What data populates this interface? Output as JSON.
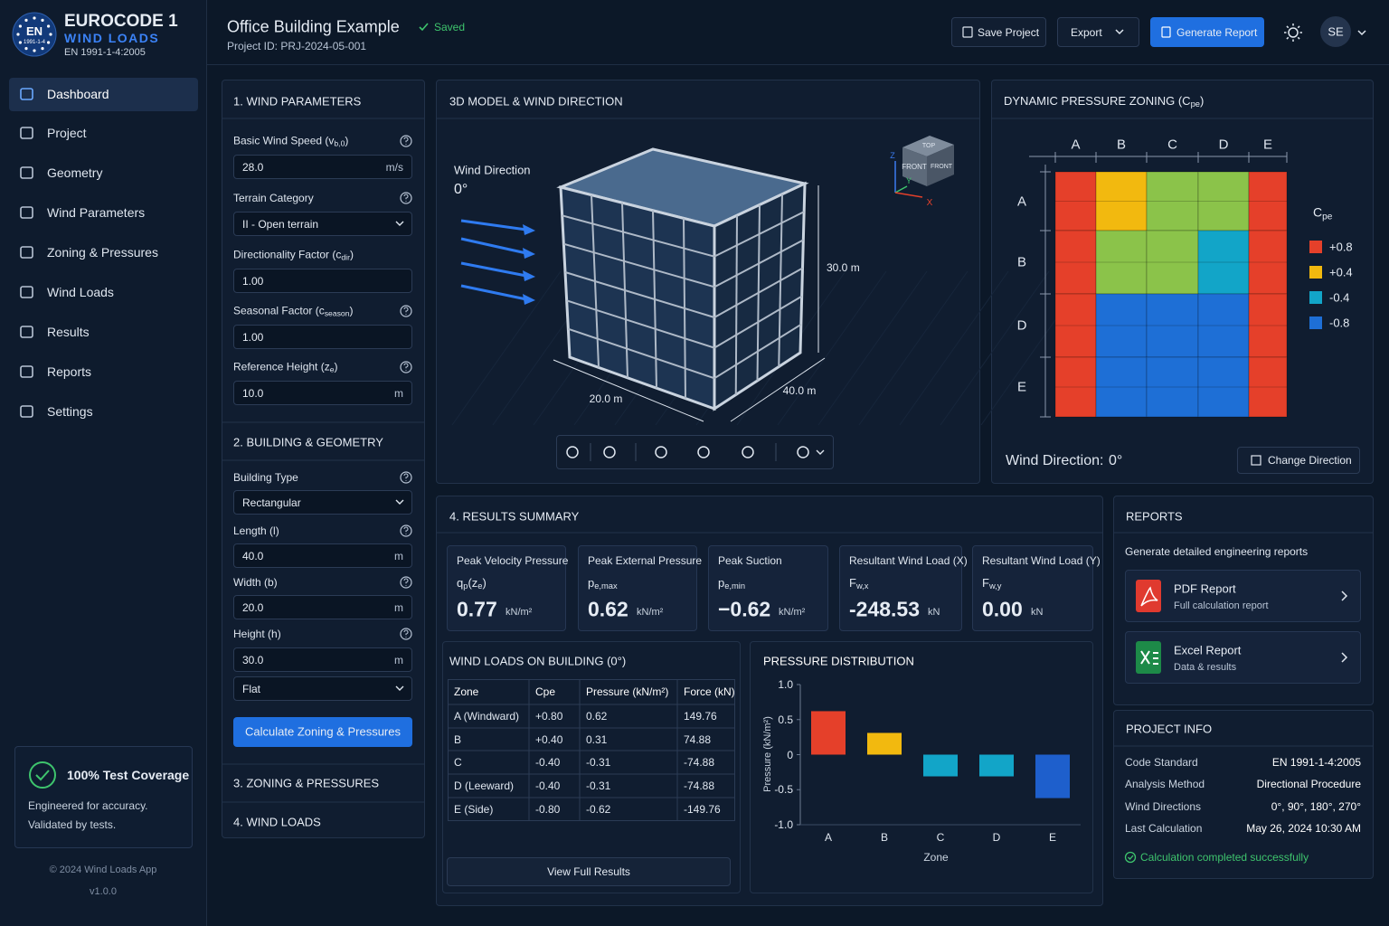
{
  "app": {
    "logo": "EN",
    "logo_sub": "1991-1-4",
    "title": "EUROCODE 1",
    "subtitle": "WIND LOADS",
    "standard": "EN 1991-1-4:2005"
  },
  "header": {
    "project": "Office Building Example",
    "status": "Saved",
    "project_id": "Project ID: PRJ-2024-05-001",
    "save": "Save Project",
    "export": "Export",
    "generate": "Generate Report",
    "avatar": "SE"
  },
  "nav": {
    "items": [
      "Dashboard",
      "Project",
      "Geometry",
      "Wind Parameters",
      "Zoning & Pressures",
      "Wind Loads",
      "Results",
      "Reports",
      "Settings"
    ],
    "active": 0
  },
  "coverage": {
    "title": "100% Test Coverage",
    "lines": [
      "Engineered for accuracy.",
      "Validated by tests."
    ]
  },
  "footer": [
    "© 2024 Wind Loads App",
    "v1.0.0"
  ],
  "wind_params": {
    "title": "1. WIND PARAMETERS",
    "fields": [
      {
        "label": [
          "Basic Wind Speed (v",
          {
            "sub": "b,0"
          },
          ")"
        ],
        "value": "28.0",
        "unit": "m/s",
        "help": true
      },
      {
        "label": [
          "Terrain Category"
        ],
        "value": "II - Open terrain",
        "help": true,
        "select": true
      },
      {
        "label": [
          "Directionality Factor (c",
          {
            "sub": "dir"
          },
          ")"
        ],
        "value": "1.00"
      },
      {
        "label": [
          "Seasonal Factor (c",
          {
            "sub": "season"
          },
          ")"
        ],
        "value": "1.00",
        "help": true
      },
      {
        "label": [
          "Reference Height (z",
          {
            "sub": "e"
          },
          ")"
        ],
        "value": "10.0",
        "unit": "m",
        "help": true
      }
    ]
  },
  "geometry": {
    "title": "2. BUILDING & GEOMETRY",
    "fields": [
      {
        "label": [
          "Building Type"
        ],
        "value": "Rectangular",
        "help": true,
        "select": true
      },
      {
        "label": [
          "Length (l)"
        ],
        "value": "40.0",
        "unit": "m",
        "help": true
      },
      {
        "label": [
          "Width (b)"
        ],
        "value": "20.0",
        "unit": "m",
        "help": true
      },
      {
        "label": [
          "Height (h)"
        ],
        "value": "30.0",
        "unit": "m",
        "help": true
      },
      {
        "value": "Flat",
        "select": true
      }
    ],
    "button": "Calculate Zoning & Pressures"
  },
  "collapsed": [
    "3. ZONING & PRESSURES",
    "4. WIND LOADS"
  ],
  "model": {
    "title": "3D MODEL & WIND DIRECTION",
    "wind_label": "Wind Direction",
    "wind_value": "0°",
    "height": "30.0 m",
    "width": "20.0 m",
    "length": "40.0 m",
    "cube": [
      "TOP",
      "FRONT",
      "FRONT"
    ],
    "axes": [
      "Z",
      "Y",
      "X"
    ]
  },
  "zoning": {
    "title": [
      "DYNAMIC PRESSURE ZONING (C",
      {
        "sub": "pe"
      },
      ")"
    ],
    "columns": [
      "A",
      "B",
      "C",
      "D",
      "E"
    ],
    "rows": [
      "A",
      "B",
      "D",
      "E"
    ],
    "cells": [
      [
        "#e5402a",
        "#f2b90f",
        "#8bc34a",
        "#8bc34a",
        "#e5402a"
      ],
      [
        "#e5402a",
        "#8bc34a",
        "#8bc34a",
        "#12a5c8",
        "#e5402a"
      ],
      [
        "#e5402a",
        "#1e6fd6",
        "#1e6fd6",
        "#1e6fd6",
        "#e5402a"
      ],
      [
        "#e5402a",
        "#1e6fd6",
        "#1e6fd6",
        "#1e6fd6",
        "#e5402a"
      ]
    ],
    "legend_title": [
      "C",
      {
        "sub": "pe"
      }
    ],
    "legend": [
      {
        "label": "+0.8",
        "color": "#e5402a"
      },
      {
        "label": "+0.4",
        "color": "#f2b90f"
      },
      {
        "label": "-0.4",
        "color": "#12a5c8"
      },
      {
        "label": "-0.8",
        "color": "#1e6fd6"
      }
    ],
    "direction_label": "Wind Direction:",
    "direction_value": "0°",
    "button": "Change Direction"
  },
  "results": {
    "title": "4. RESULTS SUMMARY",
    "cards": [
      {
        "title": "Peak Velocity Pressure",
        "symbol": [
          "q",
          {
            "sub": "p"
          },
          "(z",
          {
            "sub": "e"
          },
          ")"
        ],
        "value": "0.77",
        "unit": "kN/m²"
      },
      {
        "title": "Peak External Pressure",
        "symbol": [
          "p",
          {
            "sub": "e,max"
          }
        ],
        "value": "0.62",
        "unit": "kN/m²"
      },
      {
        "title": "Peak Suction",
        "symbol": [
          "p",
          {
            "sub": "e,min"
          }
        ],
        "value": "−0.62",
        "unit": "kN/m²"
      },
      {
        "title": "Resultant Wind Load (X)",
        "symbol": [
          "F",
          {
            "sub": "w,x"
          }
        ],
        "value": "-248.53",
        "unit": "kN"
      },
      {
        "title": "Resultant Wind Load (Y)",
        "symbol": [
          "F",
          {
            "sub": "w,y"
          }
        ],
        "value": "0.00",
        "unit": "kN"
      }
    ]
  },
  "loads_table": {
    "title": "WIND LOADS ON BUILDING (0°)",
    "headers": [
      "Zone",
      "Cpe",
      "Pressure (kN/m²)",
      "Force (kN)"
    ],
    "rows": [
      [
        "A (Windward)",
        "+0.80",
        "0.62",
        "149.76"
      ],
      [
        "B",
        "+0.40",
        "0.31",
        "74.88"
      ],
      [
        "C",
        "-0.40",
        "-0.31",
        "-74.88"
      ],
      [
        "D (Leeward)",
        "-0.40",
        "-0.31",
        "-74.88"
      ],
      [
        "E (Side)",
        "-0.80",
        "-0.62",
        "-149.76"
      ]
    ],
    "button": "View Full Results"
  },
  "chart_data": {
    "type": "bar",
    "title": "PRESSURE DISTRIBUTION",
    "ylabel": "Pressure (kN/m²)",
    "xlabel": "Zone",
    "categories": [
      "A",
      "B",
      "C",
      "D",
      "E"
    ],
    "values": [
      0.62,
      0.31,
      -0.31,
      -0.31,
      -0.62
    ],
    "colors": [
      "#e5402a",
      "#f2b90f",
      "#12a5c8",
      "#12a5c8",
      "#1e5fcc"
    ],
    "ylim": [
      -1,
      1
    ],
    "yticks": [
      {
        "value": 1,
        "label": "1.0"
      },
      0.5,
      0,
      -0.5,
      {
        "value": -1,
        "label": "-1.0"
      }
    ]
  },
  "reports": {
    "title": "REPORTS",
    "subtitle": "Generate detailed engineering reports",
    "items": [
      {
        "title": "PDF Report",
        "subtitle": "Full calculation report"
      },
      {
        "title": "Excel Report",
        "subtitle": "Data & results"
      }
    ]
  },
  "project_info": {
    "title": "PROJECT INFO",
    "rows": [
      [
        "Code Standard",
        "EN 1991-1-4:2005"
      ],
      [
        "Analysis Method",
        "Directional Procedure"
      ],
      [
        "Wind Directions",
        "0°, 90°, 180°, 270°"
      ],
      [
        "Last Calculation",
        "May 26, 2024 10:30 AM"
      ]
    ],
    "status": "Calculation completed successfully"
  }
}
